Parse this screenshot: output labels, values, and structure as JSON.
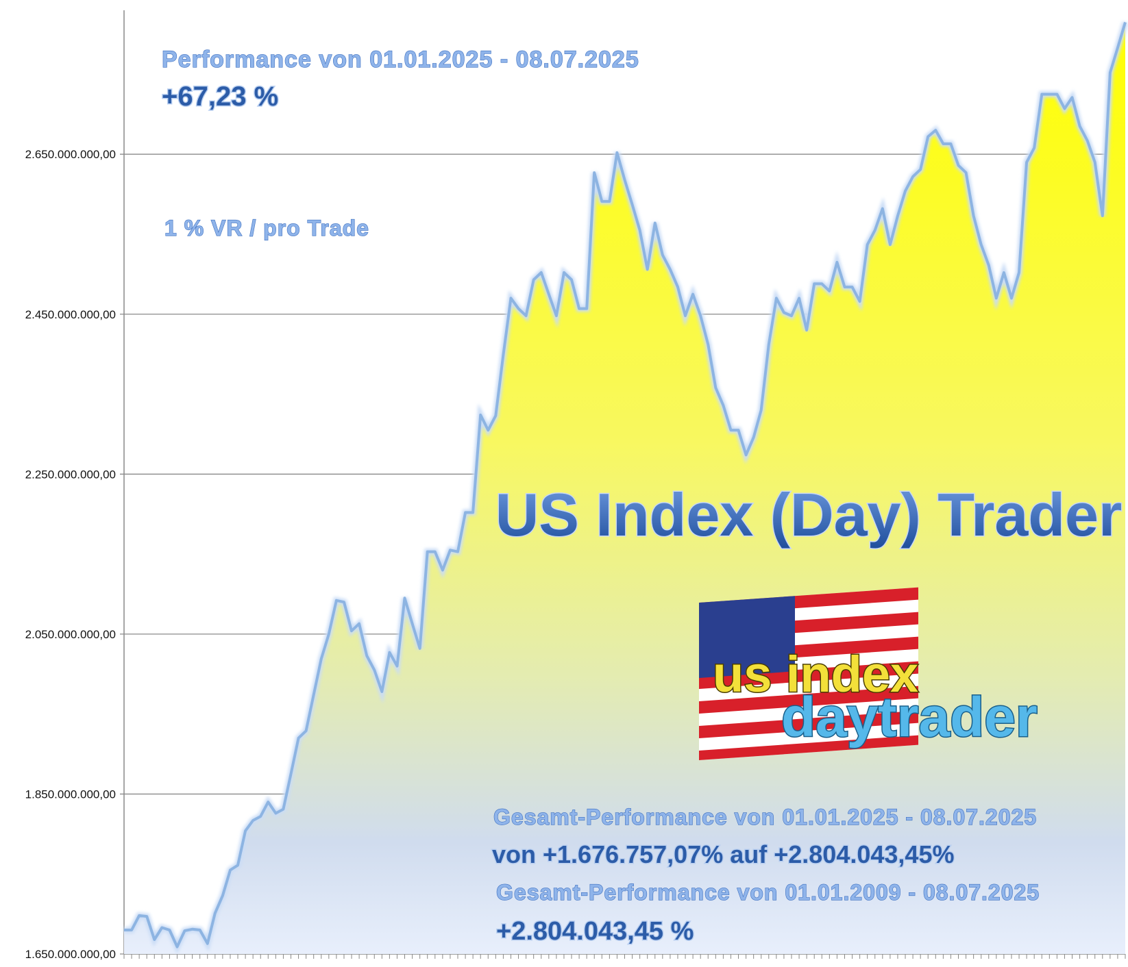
{
  "chart_data": {
    "type": "area",
    "annotations": [
      "Performance  von  01.01.2025 - 08.07.2025",
      "+67,23 %",
      "1 % VR / pro Trade",
      "US Index (Day) Trader",
      "us index",
      "daytrader",
      "Gesamt-Performance  von  01.01.2025 - 08.07.2025",
      "von +1.676.757,07% auf  +2.804.043,45%",
      "Gesamt-Performance  von  01.01.2009 - 08.07.2025",
      "+2.804.043,45 %"
    ],
    "categories": [
      null,
      null,
      null,
      null,
      null,
      null,
      null,
      null,
      null,
      null,
      null,
      null,
      null,
      null,
      null,
      null,
      null,
      null,
      null,
      null,
      null,
      null,
      null,
      null,
      null,
      null,
      null,
      null,
      null,
      null,
      null,
      null,
      null,
      null,
      null,
      null,
      null,
      null,
      null,
      null,
      null,
      null,
      null,
      null,
      null,
      null,
      null,
      null,
      null,
      null,
      null,
      null,
      null,
      null,
      null,
      null,
      null,
      null,
      null,
      null,
      null,
      null,
      null,
      null,
      null,
      null,
      null,
      null,
      null,
      null,
      null,
      null,
      null,
      null,
      null,
      null,
      null,
      null,
      null,
      null,
      null,
      null,
      null,
      null,
      null,
      null,
      null,
      null,
      null,
      null,
      null,
      null,
      null,
      null,
      null,
      null,
      null,
      null,
      null,
      null,
      null,
      null,
      null,
      null,
      null,
      null,
      null,
      null,
      null,
      null,
      null,
      null,
      null,
      null,
      null,
      null,
      null,
      null,
      null,
      null,
      null,
      null,
      null,
      null,
      null,
      null,
      null,
      null,
      null,
      null,
      null,
      null,
      null
    ],
    "values": [
      1680000000,
      1680000000,
      1698000000,
      1697000000,
      1668000000,
      1683000000,
      1680000000,
      1659000000,
      1679000000,
      1681000000,
      1680000000,
      1663000000,
      1701000000,
      1723000000,
      1755000000,
      1761000000,
      1804000000,
      1817000000,
      1822000000,
      1840000000,
      1826000000,
      1831000000,
      1875000000,
      1920000000,
      1929000000,
      1974000000,
      2019000000,
      2050000000,
      2092000000,
      2090000000,
      2054000000,
      2063000000,
      2023000000,
      2005000000,
      1978000000,
      2027000000,
      2010000000,
      2095000000,
      2063000000,
      2032000000,
      2153000000,
      2153000000,
      2130000000,
      2155000000,
      2153000000,
      2202000000,
      2202000000,
      2324000000,
      2305000000,
      2323000000,
      2399000000,
      2470000000,
      2457000000,
      2448000000,
      2493000000,
      2502000000,
      2475000000,
      2448000000,
      2502000000,
      2493000000,
      2457000000,
      2457000000,
      2627000000,
      2591000000,
      2591000000,
      2652000000,
      2618000000,
      2587000000,
      2555000000,
      2506000000,
      2564000000,
      2524000000,
      2506000000,
      2484000000,
      2448000000,
      2475000000,
      2448000000,
      2412000000,
      2358000000,
      2336000000,
      2305000000,
      2305000000,
      2274000000,
      2296000000,
      2330000000,
      2412000000,
      2470000000,
      2452000000,
      2448000000,
      2470000000,
      2430000000,
      2488000000,
      2488000000,
      2479000000,
      2515000000,
      2484000000,
      2484000000,
      2466000000,
      2537000000,
      2555000000,
      2582000000,
      2537000000,
      2573000000,
      2604000000,
      2622000000,
      2631000000,
      2672000000,
      2680000000,
      2663000000,
      2663000000,
      2636000000,
      2627000000,
      2573000000,
      2537000000,
      2511000000,
      2470000000,
      2502000000,
      2470000000,
      2502000000,
      2640000000,
      2658000000,
      2725000000,
      2725000000,
      2725000000,
      2707000000,
      2721000000,
      2685000000,
      2667000000,
      2640000000,
      2573000000,
      2752000000,
      2783000000,
      2815000000
    ],
    "color": "#8db4e2",
    "ylim": [
      1650000000,
      2830000000
    ],
    "yticks": [
      {
        "value": 1650000000,
        "label": "1.650.000.000,00"
      },
      {
        "value": 1850000000,
        "label": "1.850.000.000,00"
      },
      {
        "value": 2050000000,
        "label": "2.050.000.000,00"
      },
      {
        "value": 2250000000,
        "label": "2.250.000.000,00"
      },
      {
        "value": 2450000000,
        "label": "2.450.000.000,00"
      },
      {
        "value": 2650000000,
        "label": "2.650.000.000,00"
      }
    ],
    "grid": true
  }
}
